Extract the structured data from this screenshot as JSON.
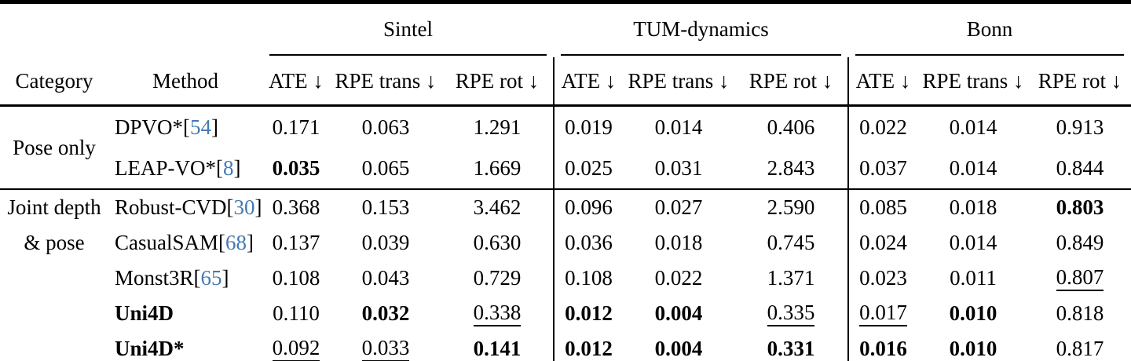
{
  "table": {
    "headers": {
      "category": "Category",
      "method": "Method",
      "metrics": [
        "ATE ↓",
        "RPE trans ↓",
        "RPE rot ↓"
      ]
    },
    "groups": [
      "Sintel",
      "TUM-dynamics",
      "Bonn"
    ],
    "cite_brackets": {
      "open": "[",
      "close": "]"
    },
    "cite_color": "#4479b2",
    "sections": [
      {
        "category_lines": [
          "Pose only"
        ],
        "rows": [
          {
            "method": "DPVO*",
            "cite": "54",
            "method_bold": false,
            "cells": [
              {
                "v": "0.171",
                "s": ""
              },
              {
                "v": "0.063",
                "s": ""
              },
              {
                "v": "1.291",
                "s": ""
              },
              {
                "v": "0.019",
                "s": ""
              },
              {
                "v": "0.014",
                "s": ""
              },
              {
                "v": "0.406",
                "s": ""
              },
              {
                "v": "0.022",
                "s": ""
              },
              {
                "v": "0.014",
                "s": ""
              },
              {
                "v": "0.913",
                "s": ""
              }
            ]
          },
          {
            "method": "LEAP-VO*",
            "cite": "8",
            "method_bold": false,
            "cells": [
              {
                "v": "0.035",
                "s": "b"
              },
              {
                "v": "0.065",
                "s": ""
              },
              {
                "v": "1.669",
                "s": ""
              },
              {
                "v": "0.025",
                "s": ""
              },
              {
                "v": "0.031",
                "s": ""
              },
              {
                "v": "2.843",
                "s": ""
              },
              {
                "v": "0.037",
                "s": ""
              },
              {
                "v": "0.014",
                "s": ""
              },
              {
                "v": "0.844",
                "s": ""
              }
            ]
          }
        ]
      },
      {
        "category_lines": [
          "Joint depth",
          "& pose"
        ],
        "rows": [
          {
            "method": "Robust-CVD",
            "cite": "30",
            "method_bold": false,
            "cells": [
              {
                "v": "0.368",
                "s": ""
              },
              {
                "v": "0.153",
                "s": ""
              },
              {
                "v": "3.462",
                "s": ""
              },
              {
                "v": "0.096",
                "s": ""
              },
              {
                "v": "0.027",
                "s": ""
              },
              {
                "v": "2.590",
                "s": ""
              },
              {
                "v": "0.085",
                "s": ""
              },
              {
                "v": "0.018",
                "s": ""
              },
              {
                "v": "0.803",
                "s": "b"
              }
            ]
          },
          {
            "method": "CasualSAM",
            "cite": "68",
            "method_bold": false,
            "cells": [
              {
                "v": "0.137",
                "s": ""
              },
              {
                "v": "0.039",
                "s": ""
              },
              {
                "v": "0.630",
                "s": ""
              },
              {
                "v": "0.036",
                "s": ""
              },
              {
                "v": "0.018",
                "s": ""
              },
              {
                "v": "0.745",
                "s": ""
              },
              {
                "v": "0.024",
                "s": ""
              },
              {
                "v": "0.014",
                "s": ""
              },
              {
                "v": "0.849",
                "s": ""
              }
            ]
          },
          {
            "method": "Monst3R",
            "cite": "65",
            "method_bold": false,
            "cells": [
              {
                "v": "0.108",
                "s": ""
              },
              {
                "v": "0.043",
                "s": ""
              },
              {
                "v": "0.729",
                "s": ""
              },
              {
                "v": "0.108",
                "s": ""
              },
              {
                "v": "0.022",
                "s": ""
              },
              {
                "v": "1.371",
                "s": ""
              },
              {
                "v": "0.023",
                "s": ""
              },
              {
                "v": "0.011",
                "s": ""
              },
              {
                "v": "0.807",
                "s": "u"
              }
            ]
          },
          {
            "method": "Uni4D",
            "cite": null,
            "method_bold": true,
            "cells": [
              {
                "v": "0.110",
                "s": ""
              },
              {
                "v": "0.032",
                "s": "b"
              },
              {
                "v": "0.338",
                "s": "u"
              },
              {
                "v": "0.012",
                "s": "b"
              },
              {
                "v": "0.004",
                "s": "b"
              },
              {
                "v": "0.335",
                "s": "u"
              },
              {
                "v": "0.017",
                "s": "u"
              },
              {
                "v": "0.010",
                "s": "b"
              },
              {
                "v": "0.818",
                "s": ""
              }
            ]
          },
          {
            "method": "Uni4D*",
            "cite": null,
            "method_bold": true,
            "cells": [
              {
                "v": "0.092",
                "s": "u"
              },
              {
                "v": "0.033",
                "s": "u"
              },
              {
                "v": "0.141",
                "s": "b"
              },
              {
                "v": "0.012",
                "s": "b"
              },
              {
                "v": "0.004",
                "s": "b"
              },
              {
                "v": "0.331",
                "s": "b"
              },
              {
                "v": "0.016",
                "s": "b"
              },
              {
                "v": "0.010",
                "s": "b"
              },
              {
                "v": "0.817",
                "s": ""
              }
            ]
          }
        ]
      }
    ]
  }
}
